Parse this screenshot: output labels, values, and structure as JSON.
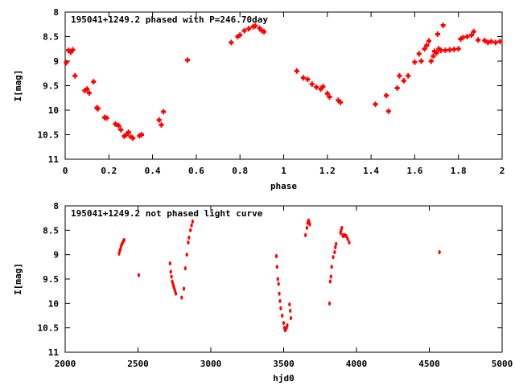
{
  "chart_data": [
    {
      "type": "scatter",
      "title": "195041+1249.2 phased with P=246.70day",
      "xlabel": "phase",
      "ylabel": "I[mag]",
      "xlim": [
        0,
        2
      ],
      "ylim": [
        11,
        8
      ],
      "y_inverted": true,
      "xticks": [
        0,
        0.2,
        0.4,
        0.6,
        0.8,
        1,
        1.2,
        1.4,
        1.6,
        1.8,
        2
      ],
      "yticks": [
        8,
        8.5,
        9,
        9.5,
        10,
        10.5,
        11
      ],
      "xtick_labels": [
        "0",
        "0.2",
        "0.4",
        "0.6",
        "0.8",
        "1",
        "1.2",
        "1.4",
        "1.6",
        "1.8",
        "2"
      ],
      "ytick_labels": [
        "8",
        "8.5",
        "9",
        "9.5",
        "10",
        "10.5",
        "11"
      ],
      "marker_color": "#ff0000",
      "grid": false,
      "series": [
        {
          "points": [
            [
              0.005,
              9.03
            ],
            [
              0.015,
              8.78
            ],
            [
              0.025,
              8.82
            ],
            [
              0.035,
              8.77
            ],
            [
              0.045,
              9.3
            ],
            [
              0.09,
              9.6
            ],
            [
              0.1,
              9.57
            ],
            [
              0.11,
              9.65
            ],
            [
              0.13,
              9.42
            ],
            [
              0.145,
              9.95
            ],
            [
              0.15,
              9.97
            ],
            [
              0.18,
              10.15
            ],
            [
              0.19,
              10.16
            ],
            [
              0.23,
              10.28
            ],
            [
              0.245,
              10.32
            ],
            [
              0.255,
              10.4
            ],
            [
              0.27,
              10.53
            ],
            [
              0.28,
              10.5
            ],
            [
              0.29,
              10.45
            ],
            [
              0.3,
              10.54
            ],
            [
              0.31,
              10.57
            ],
            [
              0.34,
              10.52
            ],
            [
              0.35,
              10.5
            ],
            [
              0.43,
              10.2
            ],
            [
              0.44,
              10.3
            ],
            [
              0.45,
              10.03
            ],
            [
              0.56,
              8.98
            ],
            [
              0.76,
              8.62
            ],
            [
              0.79,
              8.5
            ],
            [
              0.8,
              8.47
            ],
            [
              0.82,
              8.38
            ],
            [
              0.84,
              8.34
            ],
            [
              0.86,
              8.3
            ],
            [
              0.87,
              8.28
            ],
            [
              0.89,
              8.33
            ],
            [
              0.9,
              8.38
            ],
            [
              0.91,
              8.4
            ],
            [
              1.06,
              9.2
            ],
            [
              1.09,
              9.34
            ],
            [
              1.11,
              9.37
            ],
            [
              1.13,
              9.47
            ],
            [
              1.15,
              9.53
            ],
            [
              1.17,
              9.57
            ],
            [
              1.18,
              9.52
            ],
            [
              1.2,
              9.66
            ],
            [
              1.21,
              9.73
            ],
            [
              1.25,
              9.8
            ],
            [
              1.26,
              9.84
            ],
            [
              1.42,
              9.88
            ],
            [
              1.47,
              9.7
            ],
            [
              1.48,
              10.02
            ],
            [
              1.52,
              9.55
            ],
            [
              1.53,
              9.3
            ],
            [
              1.55,
              9.4
            ],
            [
              1.57,
              9.3
            ],
            [
              1.6,
              9.02
            ],
            [
              1.62,
              8.85
            ],
            [
              1.63,
              9.0
            ],
            [
              1.645,
              8.75
            ],
            [
              1.655,
              8.68
            ],
            [
              1.665,
              8.59
            ],
            [
              1.675,
              9.0
            ],
            [
              1.685,
              8.9
            ],
            [
              1.69,
              8.8
            ],
            [
              1.7,
              8.83
            ],
            [
              1.705,
              8.45
            ],
            [
              1.71,
              8.75
            ],
            [
              1.72,
              8.78
            ],
            [
              1.73,
              8.27
            ],
            [
              1.74,
              8.78
            ],
            [
              1.76,
              8.77
            ],
            [
              1.78,
              8.76
            ],
            [
              1.8,
              8.75
            ],
            [
              1.81,
              8.55
            ],
            [
              1.82,
              8.52
            ],
            [
              1.84,
              8.5
            ],
            [
              1.86,
              8.47
            ],
            [
              1.87,
              8.4
            ],
            [
              1.89,
              8.57
            ],
            [
              1.92,
              8.58
            ],
            [
              1.935,
              8.62
            ],
            [
              1.95,
              8.6
            ],
            [
              1.97,
              8.62
            ],
            [
              1.99,
              8.6
            ]
          ]
        }
      ]
    },
    {
      "type": "scatter",
      "title": "195041+1249.2 not phased light curve",
      "xlabel": "hjd0",
      "ylabel": "I[mag]",
      "xlim": [
        2000,
        5000
      ],
      "ylim": [
        11,
        8
      ],
      "y_inverted": true,
      "xticks": [
        2000,
        2500,
        3000,
        3500,
        4000,
        4500,
        5000
      ],
      "yticks": [
        8,
        8.5,
        9,
        9.5,
        10,
        10.5,
        11
      ],
      "xtick_labels": [
        "2000",
        "2500",
        "3000",
        "3500",
        "4000",
        "4500",
        "5000"
      ],
      "ytick_labels": [
        "8",
        "8.5",
        "9",
        "9.5",
        "10",
        "10.5",
        "11"
      ],
      "marker_color": "#ff0000",
      "grid": false,
      "series": [
        {
          "points": [
            [
              2370,
              8.98
            ],
            [
              2375,
              8.92
            ],
            [
              2380,
              8.88
            ],
            [
              2385,
              8.82
            ],
            [
              2390,
              8.78
            ],
            [
              2395,
              8.75
            ],
            [
              2400,
              8.72
            ],
            [
              2405,
              8.7
            ],
            [
              2505,
              9.42
            ],
            [
              2720,
              9.18
            ],
            [
              2725,
              9.35
            ],
            [
              2730,
              9.45
            ],
            [
              2735,
              9.55
            ],
            [
              2740,
              9.6
            ],
            [
              2745,
              9.65
            ],
            [
              2750,
              9.7
            ],
            [
              2755,
              9.75
            ],
            [
              2760,
              9.8
            ],
            [
              2800,
              9.88
            ],
            [
              2815,
              9.7
            ],
            [
              2825,
              9.28
            ],
            [
              2835,
              9.0
            ],
            [
              2845,
              8.75
            ],
            [
              2850,
              8.65
            ],
            [
              2860,
              8.5
            ],
            [
              2868,
              8.4
            ],
            [
              2875,
              8.32
            ],
            [
              3450,
              9.03
            ],
            [
              3455,
              9.25
            ],
            [
              3460,
              9.5
            ],
            [
              3465,
              9.6
            ],
            [
              3470,
              9.8
            ],
            [
              3475,
              9.95
            ],
            [
              3480,
              10.1
            ],
            [
              3490,
              10.25
            ],
            [
              3500,
              10.4
            ],
            [
              3505,
              10.5
            ],
            [
              3510,
              10.55
            ],
            [
              3515,
              10.53
            ],
            [
              3520,
              10.5
            ],
            [
              3525,
              10.45
            ],
            [
              3540,
              10.02
            ],
            [
              3545,
              10.15
            ],
            [
              3550,
              10.3
            ],
            [
              3650,
              8.6
            ],
            [
              3660,
              8.45
            ],
            [
              3665,
              8.35
            ],
            [
              3670,
              8.3
            ],
            [
              3675,
              8.32
            ],
            [
              3680,
              8.38
            ],
            [
              3815,
              10.0
            ],
            [
              3820,
              9.55
            ],
            [
              3825,
              9.45
            ],
            [
              3830,
              9.25
            ],
            [
              3840,
              9.05
            ],
            [
              3850,
              8.95
            ],
            [
              3855,
              8.85
            ],
            [
              3860,
              8.78
            ],
            [
              3890,
              8.55
            ],
            [
              3895,
              8.5
            ],
            [
              3900,
              8.45
            ],
            [
              3905,
              8.6
            ],
            [
              3910,
              8.62
            ],
            [
              3920,
              8.6
            ],
            [
              3930,
              8.62
            ],
            [
              3940,
              8.68
            ],
            [
              3950,
              8.75
            ],
            [
              4570,
              8.95
            ]
          ]
        }
      ]
    }
  ]
}
